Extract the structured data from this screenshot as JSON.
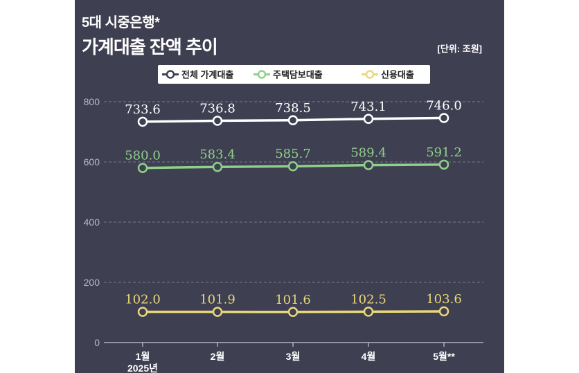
{
  "header": {
    "title_line1": "5대 시중은행*",
    "title_line2": "가계대출 잔액 추이",
    "unit": "[단위: 조원]"
  },
  "colors": {
    "background": "#3f3f52",
    "white_series": "#ffffff",
    "green_series": "#8fd08a",
    "yellow_series": "#e8d87a"
  },
  "chart_data": {
    "type": "line",
    "categories": [
      "1월",
      "2월",
      "3월",
      "4월",
      "5월**"
    ],
    "x_sublabel": "2025년",
    "yticks": [
      0,
      200,
      400,
      600,
      800
    ],
    "ylim": [
      0,
      800
    ],
    "grid": true,
    "legend_position": "top",
    "series": [
      {
        "name": "전체 가계대출",
        "color": "#ffffff",
        "values": [
          733.6,
          736.8,
          738.5,
          743.1,
          746.0
        ],
        "labels": [
          "733.6",
          "736.8",
          "738.5",
          "743.1",
          "746.0"
        ]
      },
      {
        "name": "주택담보대출",
        "color": "#8fd08a",
        "values": [
          580.0,
          583.4,
          585.7,
          589.4,
          591.2
        ],
        "labels": [
          "580.0",
          "583.4",
          "585.7",
          "589.4",
          "591.2"
        ]
      },
      {
        "name": "신용대출",
        "color": "#e8d87a",
        "values": [
          102.0,
          101.9,
          101.6,
          102.5,
          103.6
        ],
        "labels": [
          "102.0",
          "101.9",
          "101.6",
          "102.5",
          "103.6"
        ]
      }
    ]
  }
}
